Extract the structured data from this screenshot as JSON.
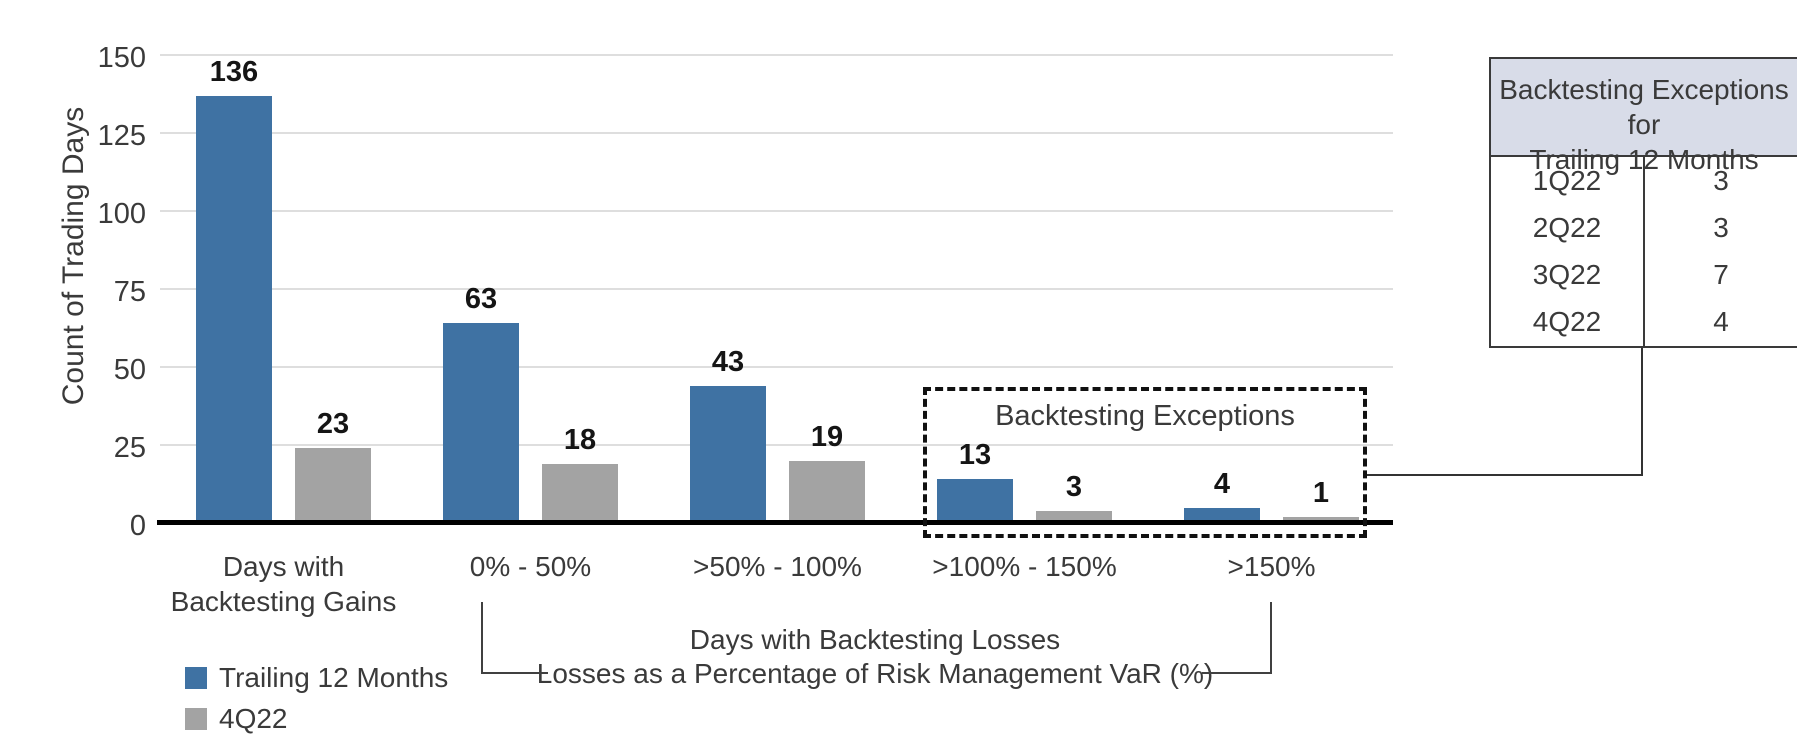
{
  "chart_data": {
    "type": "bar",
    "title": "",
    "ylabel": "Count of Trading Days",
    "xlabel": "",
    "ylim": [
      0,
      150
    ],
    "yticks": [
      0,
      25,
      50,
      75,
      100,
      125,
      150
    ],
    "grid": "horizontal",
    "legend_position": "bottom-left",
    "categories": [
      "Days with\nBacktesting Gains",
      "0% - 50%",
      ">50% - 100%",
      ">100% - 150%",
      ">150%"
    ],
    "series": [
      {
        "name": "Trailing 12 Months",
        "color": "#3f72a3",
        "values": [
          136,
          63,
          43,
          13,
          4
        ]
      },
      {
        "name": "4Q22",
        "color": "#a3a3a3",
        "values": [
          23,
          18,
          19,
          3,
          1
        ]
      }
    ],
    "annotations": {
      "exceptions_box_label": "Backtesting Exceptions",
      "x_caption_line1": "Days with Backtesting Losses",
      "x_caption_line2": "Losses as a Percentage of Risk Management VaR (%)"
    }
  },
  "side_table": {
    "title": "Backtesting Exceptions for\nTrailing 12 Months",
    "rows": [
      {
        "quarter": "1Q22",
        "count": "3"
      },
      {
        "quarter": "2Q22",
        "count": "3"
      },
      {
        "quarter": "3Q22",
        "count": "7"
      },
      {
        "quarter": "4Q22",
        "count": "4"
      }
    ]
  },
  "colors": {
    "series_blue": "#3f72a3",
    "series_gray": "#a3a3a3",
    "table_header_bg": "#d8dce8",
    "gridline": "#dedede",
    "axis": "#000000",
    "text": "#3a3a3a"
  }
}
